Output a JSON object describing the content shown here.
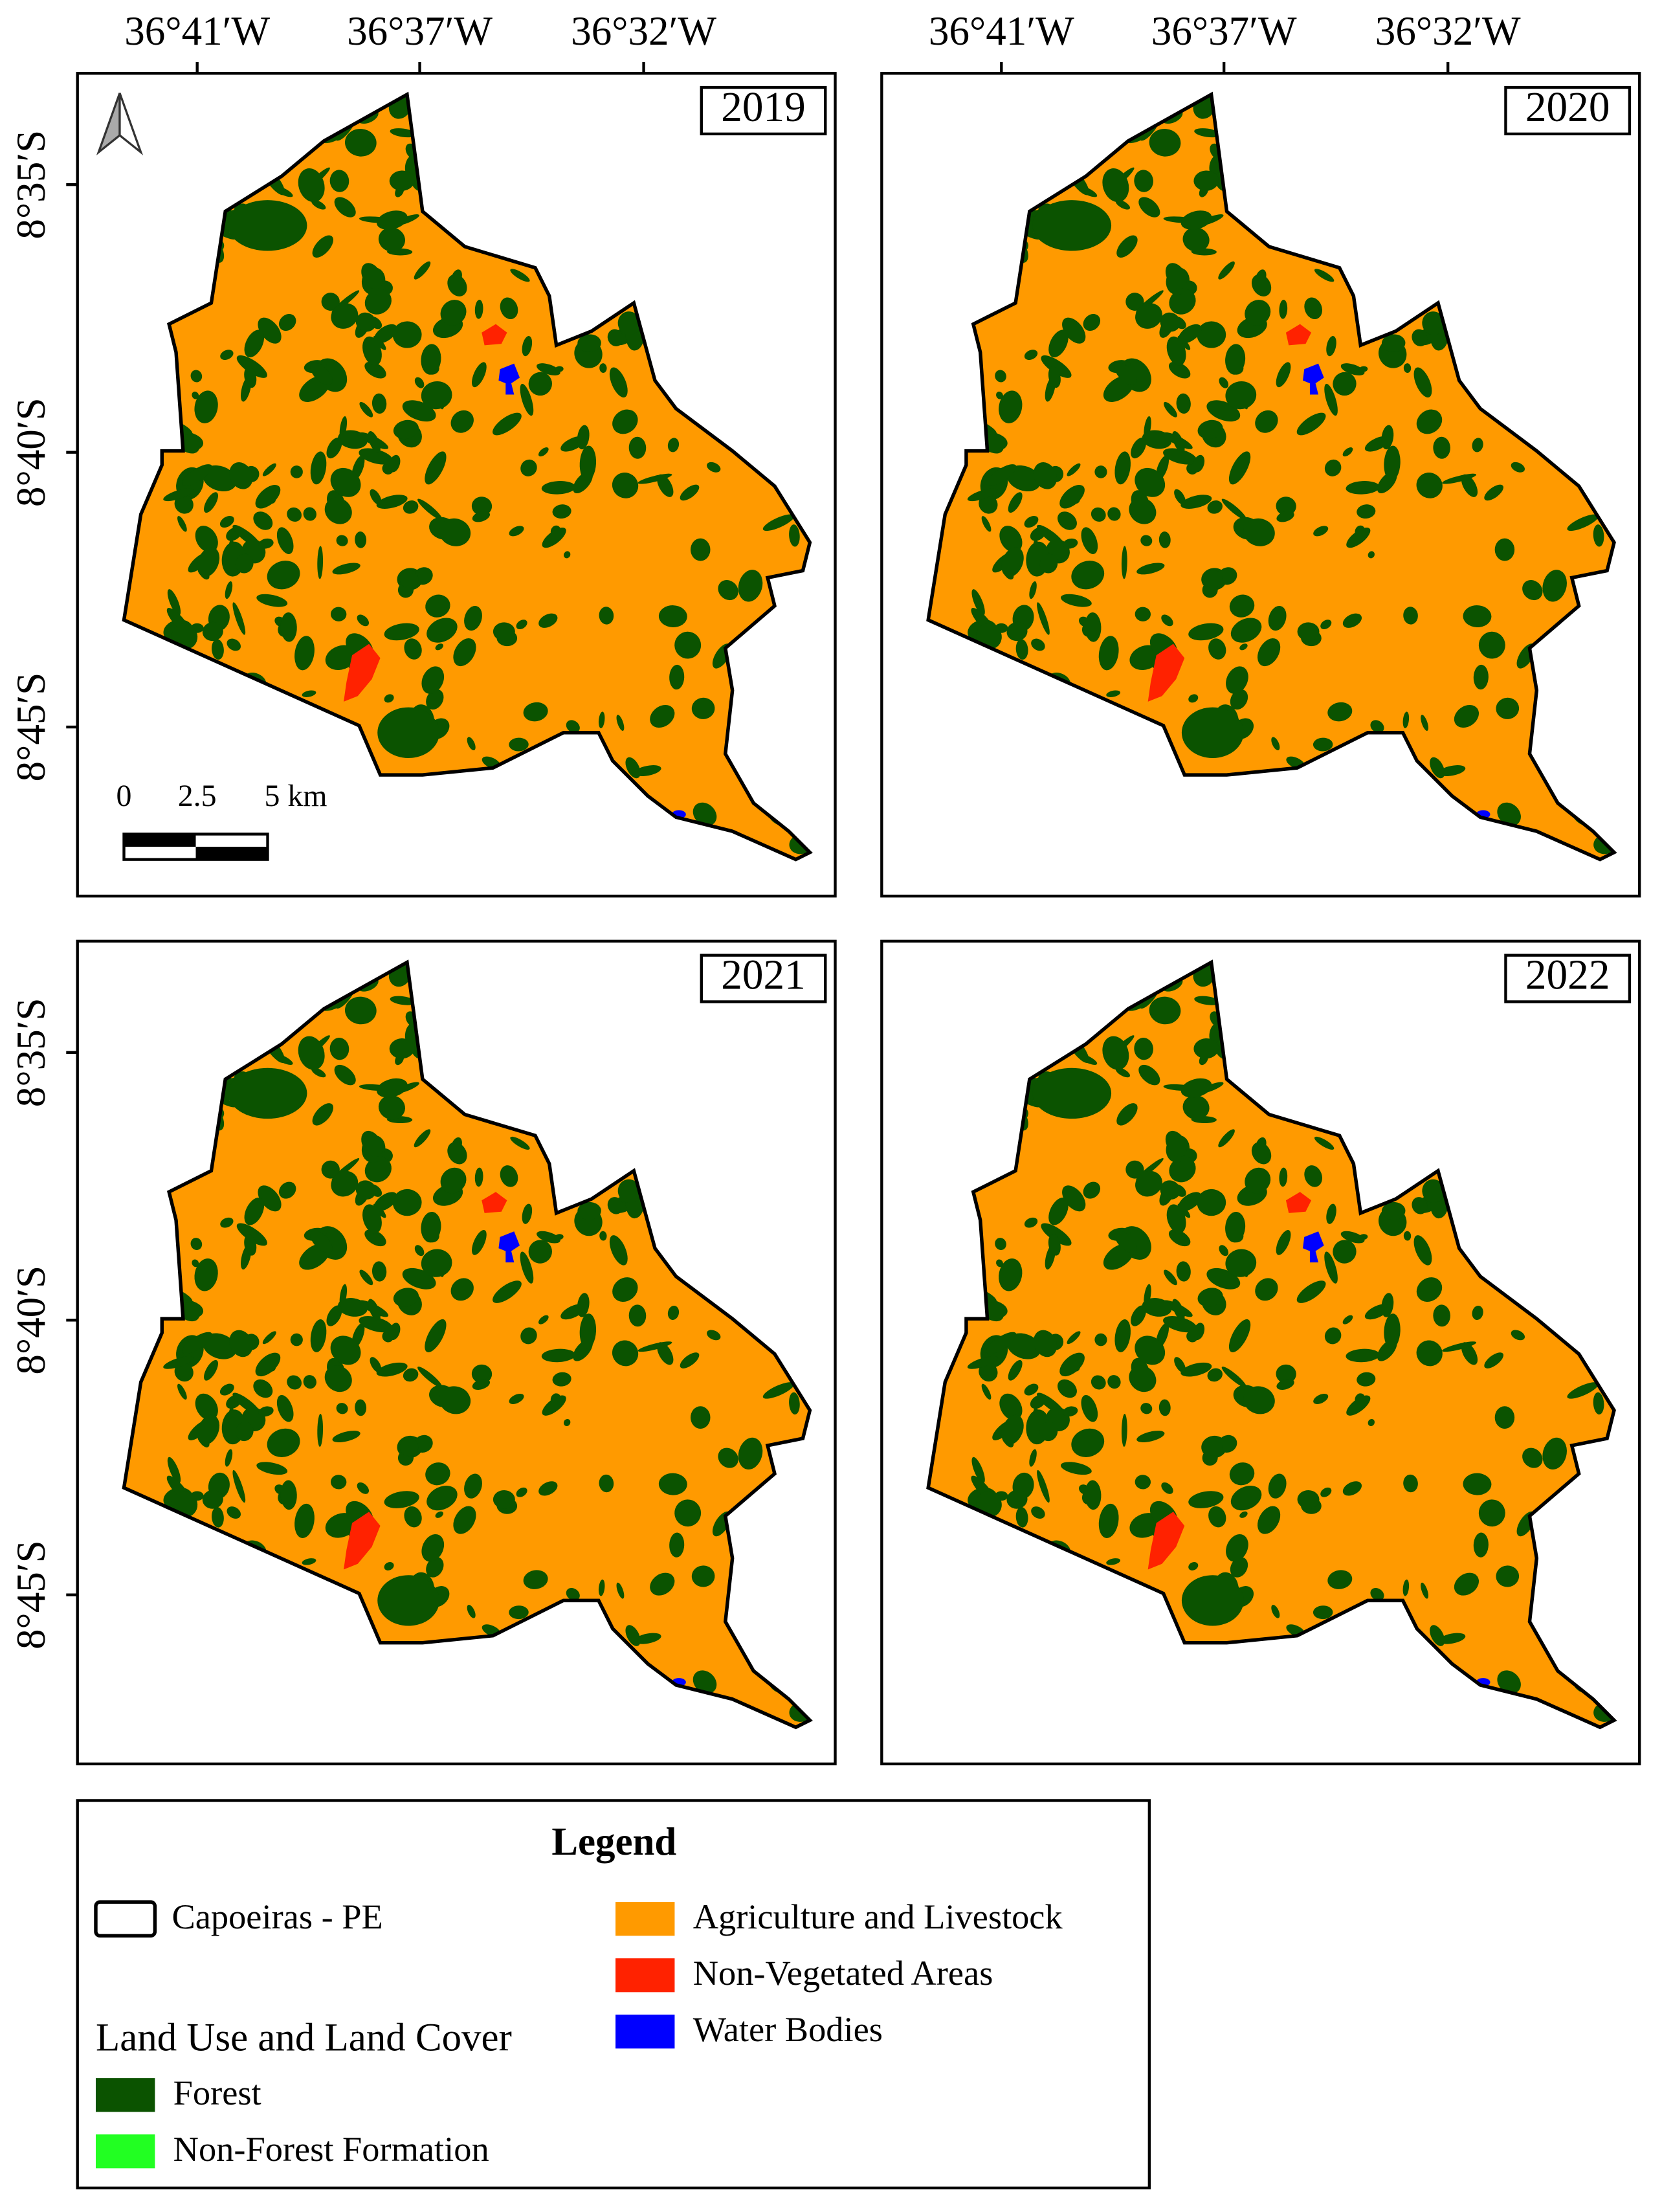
{
  "panels": [
    {
      "year": "2019"
    },
    {
      "year": "2020"
    },
    {
      "year": "2021"
    },
    {
      "year": "2022"
    }
  ],
  "lon_labels": [
    "36°41′W",
    "36°37′W",
    "36°32′W"
  ],
  "lat_labels": [
    "8°35′S",
    "8°40′S",
    "8°45′S"
  ],
  "scale_bar": {
    "labels": [
      "0",
      "2.5",
      "5 km"
    ]
  },
  "legend": {
    "title": "Legend",
    "boundary": "Capoeiras - PE",
    "section": "Land Use and Land Cover",
    "classes": [
      {
        "name": "Forest",
        "color": "#0b5300"
      },
      {
        "name": "Non-Forest Formation",
        "color": "#22ff22"
      },
      {
        "name": "Agriculture and Livestock",
        "color": "#ff9a00"
      },
      {
        "name": "Non-Vegetated Areas",
        "color": "#ff2200"
      },
      {
        "name": "Water Bodies",
        "color": "#0000ff"
      }
    ]
  }
}
